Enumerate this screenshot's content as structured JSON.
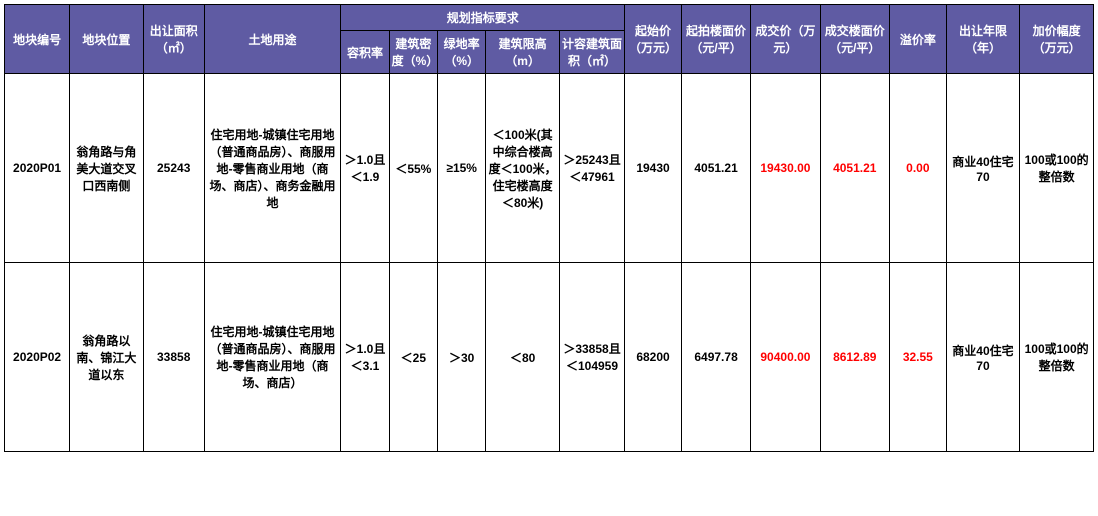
{
  "colors": {
    "header_bg": "#5f5ba3",
    "header_fg": "#ffffff",
    "body_bg": "#ffffff",
    "body_fg": "#000000",
    "highlight": "#ff0000",
    "border": "#000000"
  },
  "typography": {
    "font_family": "Microsoft YaHei",
    "font_size_pt": 9,
    "font_weight": "bold"
  },
  "headers": {
    "c0": "地块编号",
    "c1": "地块位置",
    "c2": "出让面积（㎡）",
    "c3": "土地用途",
    "group_planning": "规划指标要求",
    "c4": "容积率",
    "c5": "建筑密度（%）",
    "c6": "绿地率（%）",
    "c7": "建筑限高（m）",
    "c8": "计容建筑面积（㎡）",
    "c9": "起始价（万元）",
    "c10": "起拍楼面价（元/平）",
    "c11": "成交价（万元）",
    "c12": "成交楼面价（元/平）",
    "c13": "溢价率",
    "c14": "出让年限（年）",
    "c15": "加价幅度（万元）"
  },
  "rows": [
    {
      "c0": "2020P01",
      "c1": "翁角路与角美大道交叉口西南侧",
      "c2": "25243",
      "c3": "住宅用地-城镇住宅用地（普通商品房）、商服用地-零售商业用地（商场、商店）、商务金融用地",
      "c4": "＞1.0且＜1.9",
      "c5": "＜55%",
      "c6": "≥15%",
      "c7": "＜100米(其中综合楼高度＜100米，住宅楼高度＜80米)",
      "c8": "＞25243且＜47961",
      "c9": "19430",
      "c10": "4051.21",
      "c11": "19430.00",
      "c12": "4051.21",
      "c13": "0.00",
      "c14": "商业40住宅70",
      "c15": "100或100的整倍数"
    },
    {
      "c0": "2020P02",
      "c1": "翁角路以南、锦江大道以东",
      "c2": "33858",
      "c3": "住宅用地-城镇住宅用地（普通商品房）、商服用地-零售商业用地（商场、商店）",
      "c4": "＞1.0且＜3.1",
      "c5": "＜25",
      "c6": "＞30",
      "c7": "＜80",
      "c8": "＞33858且＜104959",
      "c9": "68200",
      "c10": "6497.78",
      "c11": "90400.00",
      "c12": "8612.89",
      "c13": "32.55",
      "c14": "商业40住宅70",
      "c15": "100或100的整倍数"
    }
  ]
}
